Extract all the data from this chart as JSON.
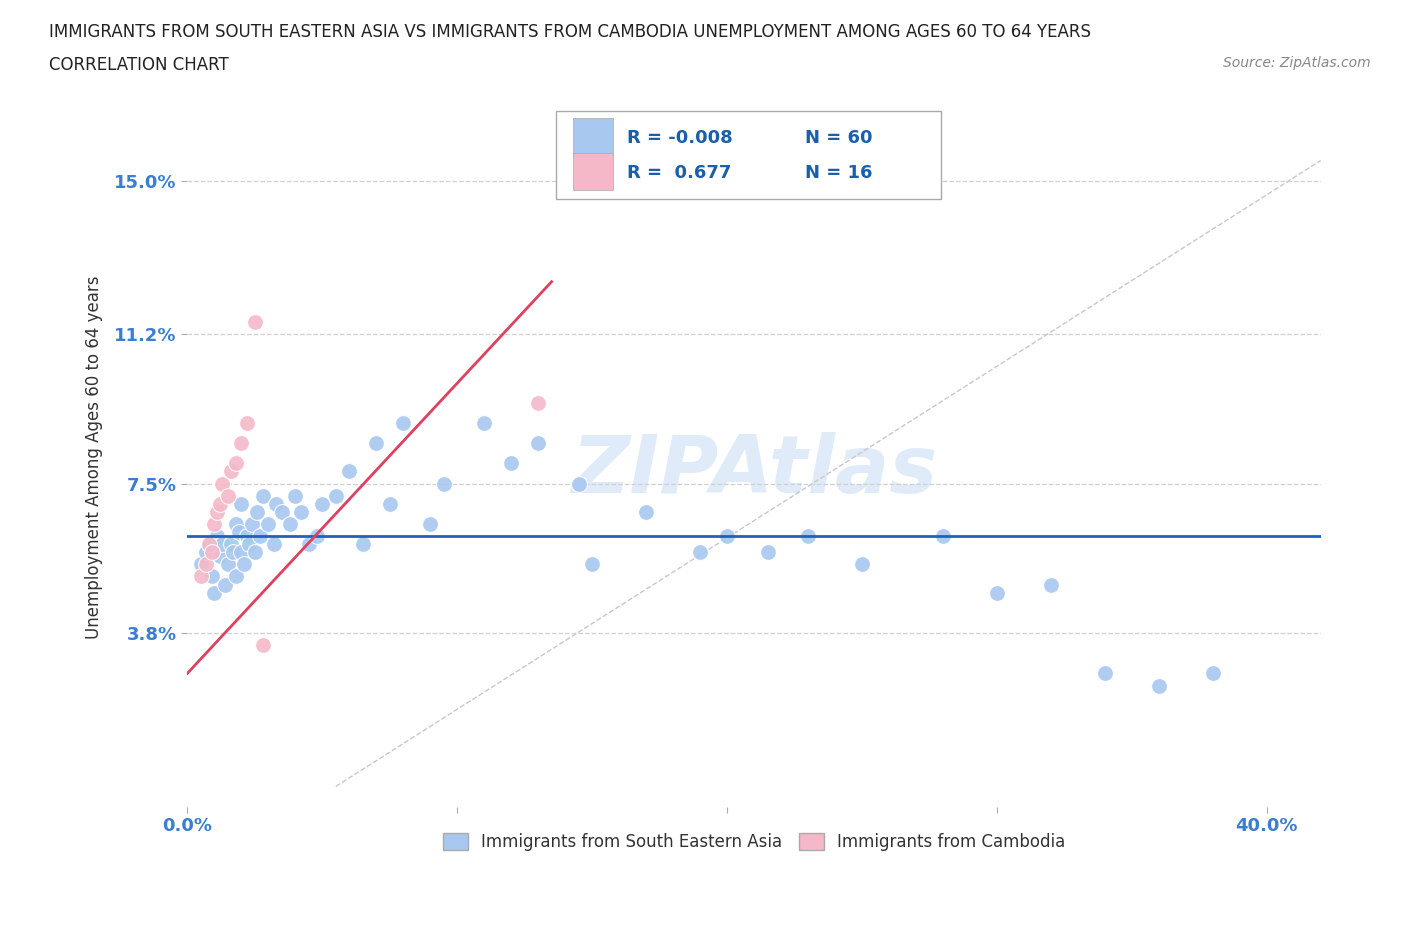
{
  "title_line1": "IMMIGRANTS FROM SOUTH EASTERN ASIA VS IMMIGRANTS FROM CAMBODIA UNEMPLOYMENT AMONG AGES 60 TO 64 YEARS",
  "title_line2": "CORRELATION CHART",
  "source_text": "Source: ZipAtlas.com",
  "ylabel": "Unemployment Among Ages 60 to 64 years",
  "xlim": [
    0.0,
    0.42
  ],
  "ylim": [
    -0.005,
    0.168
  ],
  "ytick_values": [
    0.038,
    0.075,
    0.112,
    0.15
  ],
  "ytick_labels": [
    "3.8%",
    "7.5%",
    "11.2%",
    "15.0%"
  ],
  "xtick_positions": [
    0.0,
    0.1,
    0.2,
    0.3,
    0.4
  ],
  "xtick_labels": [
    "0.0%",
    "",
    "",
    "",
    "40.0%"
  ],
  "legend_r_blue": "-0.008",
  "legend_n_blue": "60",
  "legend_r_pink": "0.677",
  "legend_n_pink": "16",
  "blue_color": "#a8c8f0",
  "pink_color": "#f5b8c8",
  "blue_line_color": "#2060c0",
  "pink_line_color": "#e04060",
  "ref_line_color": "#c8c8c8",
  "blue_trend_y": 0.062,
  "pink_line_x0": 0.0,
  "pink_line_y0": 0.028,
  "pink_line_x1": 0.135,
  "pink_line_y1": 0.125,
  "ref_line_x0": 0.055,
  "ref_line_y0": 0.0,
  "ref_line_x1": 0.42,
  "ref_line_y1": 0.155,
  "blue_scatter_x": [
    0.005,
    0.007,
    0.008,
    0.009,
    0.01,
    0.011,
    0.012,
    0.013,
    0.014,
    0.015,
    0.016,
    0.017,
    0.018,
    0.018,
    0.019,
    0.02,
    0.02,
    0.021,
    0.022,
    0.023,
    0.024,
    0.025,
    0.026,
    0.027,
    0.028,
    0.03,
    0.032,
    0.033,
    0.035,
    0.038,
    0.04,
    0.042,
    0.045,
    0.048,
    0.05,
    0.055,
    0.06,
    0.065,
    0.07,
    0.075,
    0.08,
    0.09,
    0.095,
    0.11,
    0.12,
    0.13,
    0.145,
    0.15,
    0.17,
    0.19,
    0.2,
    0.215,
    0.23,
    0.25,
    0.28,
    0.3,
    0.32,
    0.34,
    0.36,
    0.38
  ],
  "blue_scatter_y": [
    0.055,
    0.058,
    0.06,
    0.052,
    0.048,
    0.062,
    0.057,
    0.06,
    0.05,
    0.055,
    0.06,
    0.058,
    0.052,
    0.065,
    0.063,
    0.058,
    0.07,
    0.055,
    0.062,
    0.06,
    0.065,
    0.058,
    0.068,
    0.062,
    0.072,
    0.065,
    0.06,
    0.07,
    0.068,
    0.065,
    0.072,
    0.068,
    0.06,
    0.062,
    0.07,
    0.072,
    0.078,
    0.06,
    0.085,
    0.07,
    0.09,
    0.065,
    0.075,
    0.09,
    0.08,
    0.085,
    0.075,
    0.055,
    0.068,
    0.058,
    0.062,
    0.058,
    0.062,
    0.055,
    0.062,
    0.048,
    0.05,
    0.028,
    0.025,
    0.028
  ],
  "pink_scatter_x": [
    0.005,
    0.007,
    0.008,
    0.009,
    0.01,
    0.011,
    0.012,
    0.013,
    0.015,
    0.016,
    0.018,
    0.02,
    0.022,
    0.025,
    0.028,
    0.13
  ],
  "pink_scatter_y": [
    0.052,
    0.055,
    0.06,
    0.058,
    0.065,
    0.068,
    0.07,
    0.075,
    0.072,
    0.078,
    0.08,
    0.085,
    0.09,
    0.115,
    0.035,
    0.095
  ]
}
